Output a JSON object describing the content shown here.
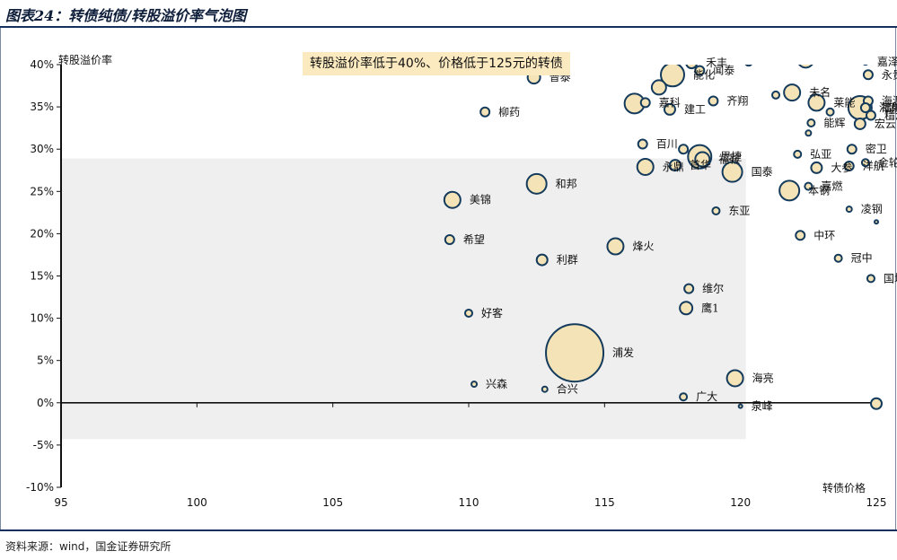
{
  "header": {
    "title": "图表24：转债纯债/转股溢价率气泡图"
  },
  "footer": {
    "source": "资料来源：wind，国金证券研究所"
  },
  "colors": {
    "bubble_fill": "#f3e3b6",
    "bubble_stroke": "#143a5c",
    "shade_fill": "#efefef",
    "note_fill": "#fbe9bf",
    "title_color": "#0e1e3a"
  },
  "chart_data": {
    "type": "scatter",
    "variant": "bubble",
    "xlabel": "转债价格",
    "ylabel": "转股溢价率",
    "xlim": [
      95,
      125
    ],
    "ylim": [
      -10,
      40
    ],
    "x_ticks": [
      "95",
      "100",
      "105",
      "110",
      "115",
      "120",
      "125"
    ],
    "y_ticks": [
      "40%",
      "35%",
      "30%",
      "25%",
      "20%",
      "15%",
      "10%",
      "5%",
      "0%",
      "-5%",
      "-10%"
    ],
    "y_tick_values": [
      40,
      35,
      30,
      25,
      20,
      15,
      10,
      5,
      0,
      -5,
      -10
    ],
    "x_tick_values": [
      95,
      100,
      105,
      110,
      115,
      120,
      125
    ],
    "highlight_region": {
      "x_range": [
        95,
        120.2
      ],
      "y_range": [
        -4.3,
        28.9
      ],
      "annotation": "转股溢价率低于40%、价格低于125元的转债"
    },
    "points": [
      {
        "label": "普泰",
        "x": 112.4,
        "y": 38.5,
        "size": 7
      },
      {
        "label": "柳药",
        "x": 110.6,
        "y": 34.4,
        "size": 5
      },
      {
        "label": "禾丰",
        "x": 118.2,
        "y": 40.2,
        "size": 6
      },
      {
        "label": "闻泰",
        "x": 118.5,
        "y": 39.3,
        "size": 5
      },
      {
        "label": "能化",
        "x": 117.5,
        "y": 38.8,
        "size": 13
      },
      {
        "label": "",
        "x": 117.0,
        "y": 37.3,
        "size": 8
      },
      {
        "label": "嘉科",
        "x": 116.5,
        "y": 35.5,
        "size": 5
      },
      {
        "label": "建工",
        "x": 117.4,
        "y": 34.7,
        "size": 6
      },
      {
        "label": "",
        "x": 116.1,
        "y": 35.4,
        "size": 11
      },
      {
        "label": "齐翔",
        "x": 119.0,
        "y": 35.7,
        "size": 5
      },
      {
        "label": "",
        "x": 120.3,
        "y": 40.3,
        "size": 4
      },
      {
        "label": "百川",
        "x": 116.4,
        "y": 30.6,
        "size": 5
      },
      {
        "label": "",
        "x": 117.9,
        "y": 30.0,
        "size": 5
      },
      {
        "label": "思捷",
        "x": 118.5,
        "y": 29.1,
        "size": 13
      },
      {
        "label": "福鞍",
        "x": 118.6,
        "y": 28.8,
        "size": 8
      },
      {
        "label": "永鼎",
        "x": 116.5,
        "y": 27.9,
        "size": 9
      },
      {
        "label": "首华",
        "x": 117.6,
        "y": 28.1,
        "size": 6
      },
      {
        "label": "国泰",
        "x": 119.7,
        "y": 27.3,
        "size": 11
      },
      {
        "label": "和邦",
        "x": 112.5,
        "y": 25.9,
        "size": 11
      },
      {
        "label": "美锦",
        "x": 109.4,
        "y": 24.0,
        "size": 9
      },
      {
        "label": "东亚",
        "x": 119.1,
        "y": 22.7,
        "size": 4
      },
      {
        "label": "希望",
        "x": 109.3,
        "y": 19.3,
        "size": 5
      },
      {
        "label": "烽火",
        "x": 115.4,
        "y": 18.5,
        "size": 9
      },
      {
        "label": "利群",
        "x": 112.7,
        "y": 16.9,
        "size": 6
      },
      {
        "label": "维尔",
        "x": 118.1,
        "y": 13.5,
        "size": 5
      },
      {
        "label": "鹰1",
        "x": 118.0,
        "y": 11.2,
        "size": 7
      },
      {
        "label": "好客",
        "x": 110.0,
        "y": 10.6,
        "size": 4
      },
      {
        "label": "浦发",
        "x": 113.9,
        "y": 5.9,
        "size": 32
      },
      {
        "label": "海亮",
        "x": 119.8,
        "y": 2.9,
        "size": 9
      },
      {
        "label": "兴森",
        "x": 110.2,
        "y": 2.2,
        "size": 3
      },
      {
        "label": "合兴",
        "x": 112.8,
        "y": 1.6,
        "size": 3
      },
      {
        "label": "广大",
        "x": 117.9,
        "y": 0.7,
        "size": 4
      },
      {
        "label": "泉峰",
        "x": 120.0,
        "y": -0.4,
        "size": 2
      },
      {
        "label": "",
        "x": 122.4,
        "y": 40.6,
        "size": 9
      },
      {
        "label": "嘉泽",
        "x": 124.6,
        "y": 40.3,
        "size": 3
      },
      {
        "label": "永贵",
        "x": 124.7,
        "y": 38.8,
        "size": 5
      },
      {
        "label": "未名",
        "x": 121.9,
        "y": 36.7,
        "size": 9
      },
      {
        "label": "",
        "x": 121.3,
        "y": 36.4,
        "size": 4
      },
      {
        "label": "莱能",
        "x": 122.8,
        "y": 35.5,
        "size": 9
      },
      {
        "label": "福能",
        "x": 124.4,
        "y": 34.9,
        "size": 13
      },
      {
        "label": "",
        "x": 123.3,
        "y": 34.4,
        "size": 4
      },
      {
        "label": "海源",
        "x": 124.7,
        "y": 35.7,
        "size": 5
      },
      {
        "label": "海利",
        "x": 124.6,
        "y": 34.9,
        "size": 5
      },
      {
        "label": "精测",
        "x": 124.8,
        "y": 34.0,
        "size": 5
      },
      {
        "label": "能辉",
        "x": 122.6,
        "y": 33.1,
        "size": 4
      },
      {
        "label": "",
        "x": 122.5,
        "y": 31.9,
        "size": 3
      },
      {
        "label": "宏云",
        "x": 124.4,
        "y": 33.0,
        "size": 6
      },
      {
        "label": "密卫",
        "x": 124.1,
        "y": 30.0,
        "size": 5
      },
      {
        "label": "弘亚",
        "x": 122.1,
        "y": 29.4,
        "size": 4
      },
      {
        "label": "大参",
        "x": 122.8,
        "y": 27.8,
        "size": 6
      },
      {
        "label": "金轮",
        "x": 124.6,
        "y": 28.4,
        "size": 4
      },
      {
        "label": "洋航",
        "x": 124.0,
        "y": 28.0,
        "size": 5
      },
      {
        "label": "嘉燃",
        "x": 122.5,
        "y": 25.6,
        "size": 4
      },
      {
        "label": "本钢",
        "x": 121.8,
        "y": 25.1,
        "size": 11
      },
      {
        "label": "凌钢",
        "x": 124.0,
        "y": 22.9,
        "size": 3
      },
      {
        "label": "中环",
        "x": 122.2,
        "y": 19.8,
        "size": 5
      },
      {
        "label": "冠中",
        "x": 123.6,
        "y": 17.1,
        "size": 4
      },
      {
        "label": "国城",
        "x": 124.8,
        "y": 14.7,
        "size": 4
      },
      {
        "label": "",
        "x": 125.0,
        "y": 21.4,
        "size": 2
      },
      {
        "label": "",
        "x": 125.0,
        "y": -0.1,
        "size": 6
      }
    ]
  }
}
